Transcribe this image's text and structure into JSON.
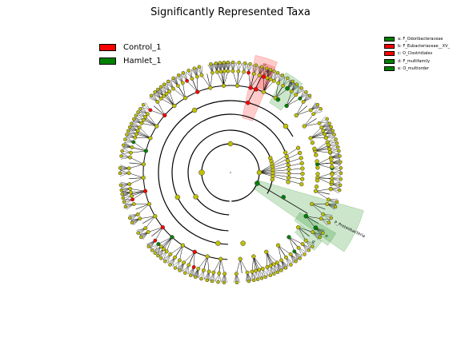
{
  "title": "Significantly Represented Taxa",
  "colors": {
    "control": "#ff0000",
    "hamlet": "#008000",
    "neutral": "#c0c000"
  },
  "legend_classes": [
    {
      "label": "Control_1",
      "color": "#ff0000"
    },
    {
      "label": "Hamlet_1",
      "color": "#008000"
    }
  ],
  "legend_taxa": [
    {
      "label": "a: F_Odoribacteraceae",
      "color": "#008000"
    },
    {
      "label": "b: F_Eubacteriaceae__XV_",
      "color": "#ff0000"
    },
    {
      "label": "c: O_Clostridiales",
      "color": "#ff0000"
    },
    {
      "label": "d: F_multifamily",
      "color": "#008000"
    },
    {
      "label": "e: O_multiorder",
      "color": "#008000"
    }
  ],
  "highlights": [
    {
      "letter": "c",
      "color": "#ff0000"
    },
    {
      "letter": "b",
      "color": "#ff0000"
    },
    {
      "letter": "a",
      "color": "#008000"
    },
    {
      "letter": "P_Proteobacteria",
      "color": "#008000"
    },
    {
      "letter": "e",
      "color": "#008000"
    },
    {
      "letter": "d",
      "color": "#008000"
    }
  ]
}
